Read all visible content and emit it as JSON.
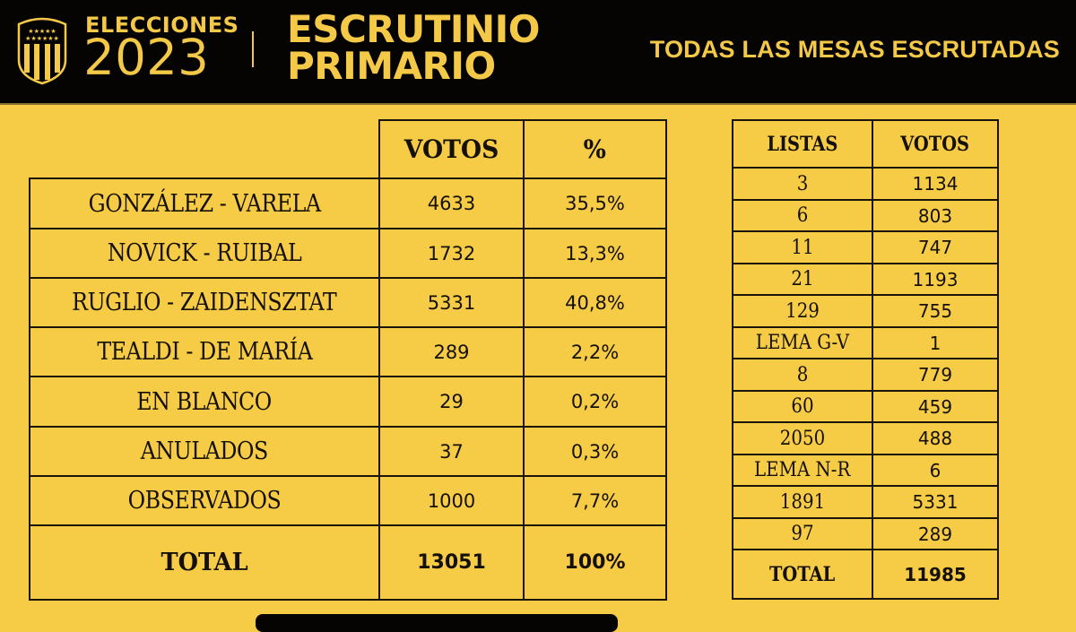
{
  "header": {
    "logo": "club-shield-icon",
    "elecciones": "ELECCIONES",
    "year": "2023",
    "title_line1": "ESCRUTINIO",
    "title_line2": "PRIMARIO",
    "subtitle": "TODAS LAS MESAS ESCRUTADAS"
  },
  "colors": {
    "background": "#f6cc46",
    "header_bg": "#050403",
    "accent": "#f4c948",
    "border": "#1b140a"
  },
  "results_table": {
    "columns": [
      "",
      "VOTOS",
      "%"
    ],
    "rows": [
      {
        "name": "GONZÁLEZ - VARELA",
        "votos": "4633",
        "pct": "35,5%"
      },
      {
        "name": "NOVICK - RUIBAL",
        "votos": "1732",
        "pct": "13,3%"
      },
      {
        "name": "RUGLIO - ZAIDENSZTAT",
        "votos": "5331",
        "pct": "40,8%"
      },
      {
        "name": "TEALDI - DE MARÍA",
        "votos": "289",
        "pct": "2,2%"
      },
      {
        "name": "EN BLANCO",
        "votos": "29",
        "pct": "0,2%"
      },
      {
        "name": "ANULADOS",
        "votos": "37",
        "pct": "0,3%"
      },
      {
        "name": "OBSERVADOS",
        "votos": "1000",
        "pct": "7,7%"
      }
    ],
    "total": {
      "name": "TOTAL",
      "votos": "13051",
      "pct": "100%"
    }
  },
  "lists_table": {
    "columns": [
      "LISTAS",
      "VOTOS"
    ],
    "rows": [
      {
        "lista": "3",
        "votos": "1134"
      },
      {
        "lista": "6",
        "votos": "803"
      },
      {
        "lista": "11",
        "votos": "747"
      },
      {
        "lista": "21",
        "votos": "1193"
      },
      {
        "lista": "129",
        "votos": "755"
      },
      {
        "lista": "LEMA G-V",
        "votos": "1"
      },
      {
        "lista": "8",
        "votos": "779"
      },
      {
        "lista": "60",
        "votos": "459"
      },
      {
        "lista": "2050",
        "votos": "488"
      },
      {
        "lista": "LEMA N-R",
        "votos": "6"
      },
      {
        "lista": "1891",
        "votos": "5331"
      },
      {
        "lista": "97",
        "votos": "289"
      }
    ],
    "total": {
      "lista": "TOTAL",
      "votos": "11985"
    }
  }
}
